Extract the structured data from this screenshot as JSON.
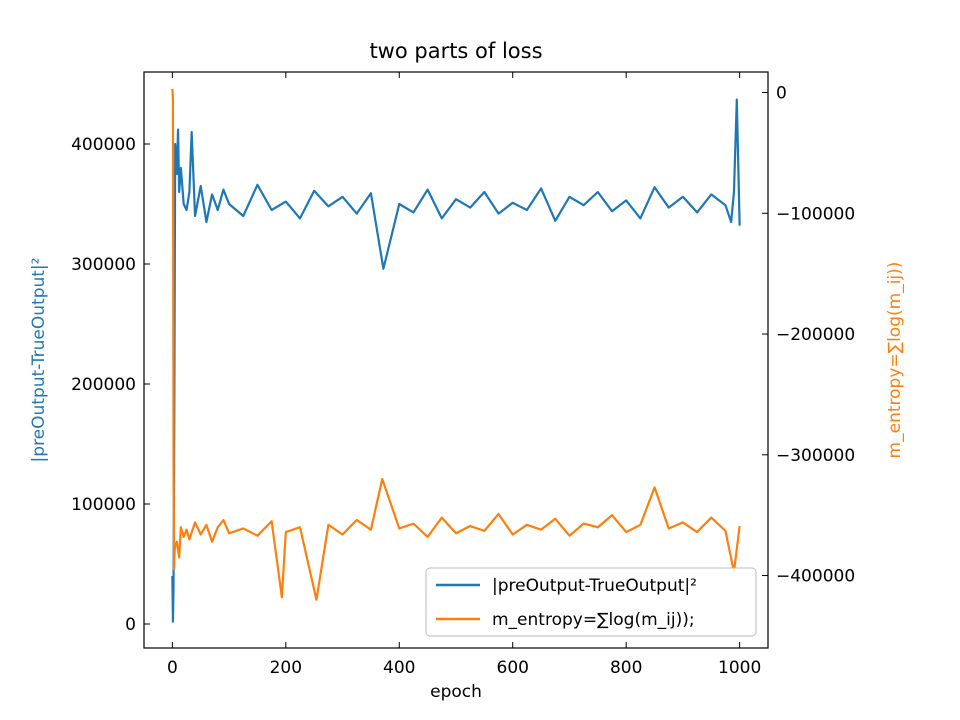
{
  "chart_data": {
    "type": "line",
    "title": "two parts of loss",
    "xlabel": "epoch",
    "ylabel_left": "|preOutput-TrueOutput|²",
    "ylabel_right": "m_entropy=∑log(m_ij))",
    "xlim": [
      -50,
      1050
    ],
    "ylim_left": [
      -20000,
      460000
    ],
    "ylim_right": [
      -460000,
      17000
    ],
    "xticks": [
      0,
      200,
      400,
      600,
      800,
      1000
    ],
    "xtick_labels": [
      "0",
      "200",
      "400",
      "600",
      "800",
      "1000"
    ],
    "yticks_left": [
      0,
      100000,
      200000,
      300000,
      400000
    ],
    "ytick_labels_left": [
      "0",
      "100000",
      "200000",
      "300000",
      "400000"
    ],
    "yticks_right": [
      0,
      -100000,
      -200000,
      -300000,
      -400000
    ],
    "ytick_labels_right": [
      "0",
      "−100000",
      "−200000",
      "−300000",
      "−400000"
    ],
    "grid": false,
    "legend": {
      "position": "lower-right",
      "entries": [
        "|preOutput-TrueOutput|²",
        "m_entropy=∑log(m_ij));"
      ]
    },
    "series": [
      {
        "name": "|preOutput-TrueOutput|²",
        "axis": "left",
        "color": "#1f77b4",
        "x": [
          0,
          1,
          2,
          3,
          5,
          8,
          10,
          12,
          15,
          20,
          25,
          30,
          34,
          40,
          50,
          60,
          70,
          80,
          90,
          100,
          125,
          150,
          175,
          200,
          225,
          250,
          275,
          300,
          325,
          350,
          372,
          400,
          425,
          450,
          475,
          500,
          525,
          550,
          575,
          600,
          625,
          650,
          675,
          700,
          725,
          750,
          775,
          800,
          825,
          850,
          875,
          900,
          925,
          950,
          975,
          985,
          990,
          995,
          1000
        ],
        "y": [
          40000,
          2000,
          30000,
          120000,
          400000,
          375000,
          412000,
          360000,
          380000,
          350000,
          345000,
          360000,
          410000,
          340000,
          365000,
          335000,
          358000,
          345000,
          362000,
          350000,
          340000,
          366000,
          345000,
          352000,
          338000,
          361000,
          348000,
          356000,
          342000,
          359000,
          296000,
          350000,
          343000,
          362000,
          338000,
          354000,
          347000,
          360000,
          342000,
          351000,
          345000,
          363000,
          336000,
          356000,
          349000,
          360000,
          344000,
          353000,
          338000,
          364000,
          347000,
          356000,
          343000,
          358000,
          349000,
          335000,
          360000,
          437000,
          332000
        ]
      },
      {
        "name": "m_entropy=∑log(m_ij));",
        "axis": "right",
        "color": "#ff7f0e",
        "x": [
          0,
          1,
          2,
          3,
          4,
          5,
          8,
          12,
          15,
          20,
          25,
          30,
          40,
          50,
          60,
          70,
          80,
          90,
          100,
          125,
          150,
          175,
          193,
          200,
          225,
          254,
          275,
          300,
          325,
          350,
          370,
          400,
          425,
          450,
          475,
          500,
          525,
          550,
          575,
          600,
          625,
          650,
          675,
          700,
          725,
          750,
          775,
          800,
          825,
          850,
          875,
          900,
          925,
          950,
          975,
          990,
          1000
        ],
        "y": [
          3000,
          -5000,
          -300000,
          -395000,
          -380000,
          -375000,
          -372000,
          -385000,
          -360000,
          -368000,
          -362000,
          -370000,
          -356000,
          -366000,
          -358000,
          -372000,
          -360000,
          -354000,
          -365000,
          -361000,
          -367000,
          -355000,
          -418000,
          -364000,
          -360000,
          -420000,
          -358000,
          -366000,
          -354000,
          -362000,
          -320000,
          -361000,
          -357000,
          -368000,
          -352000,
          -365000,
          -359000,
          -363000,
          -349000,
          -366000,
          -358000,
          -362000,
          -353000,
          -367000,
          -357000,
          -360000,
          -350000,
          -364000,
          -358000,
          -327000,
          -361000,
          -356000,
          -364000,
          -352000,
          -363000,
          -397000,
          -359000
        ]
      }
    ]
  }
}
